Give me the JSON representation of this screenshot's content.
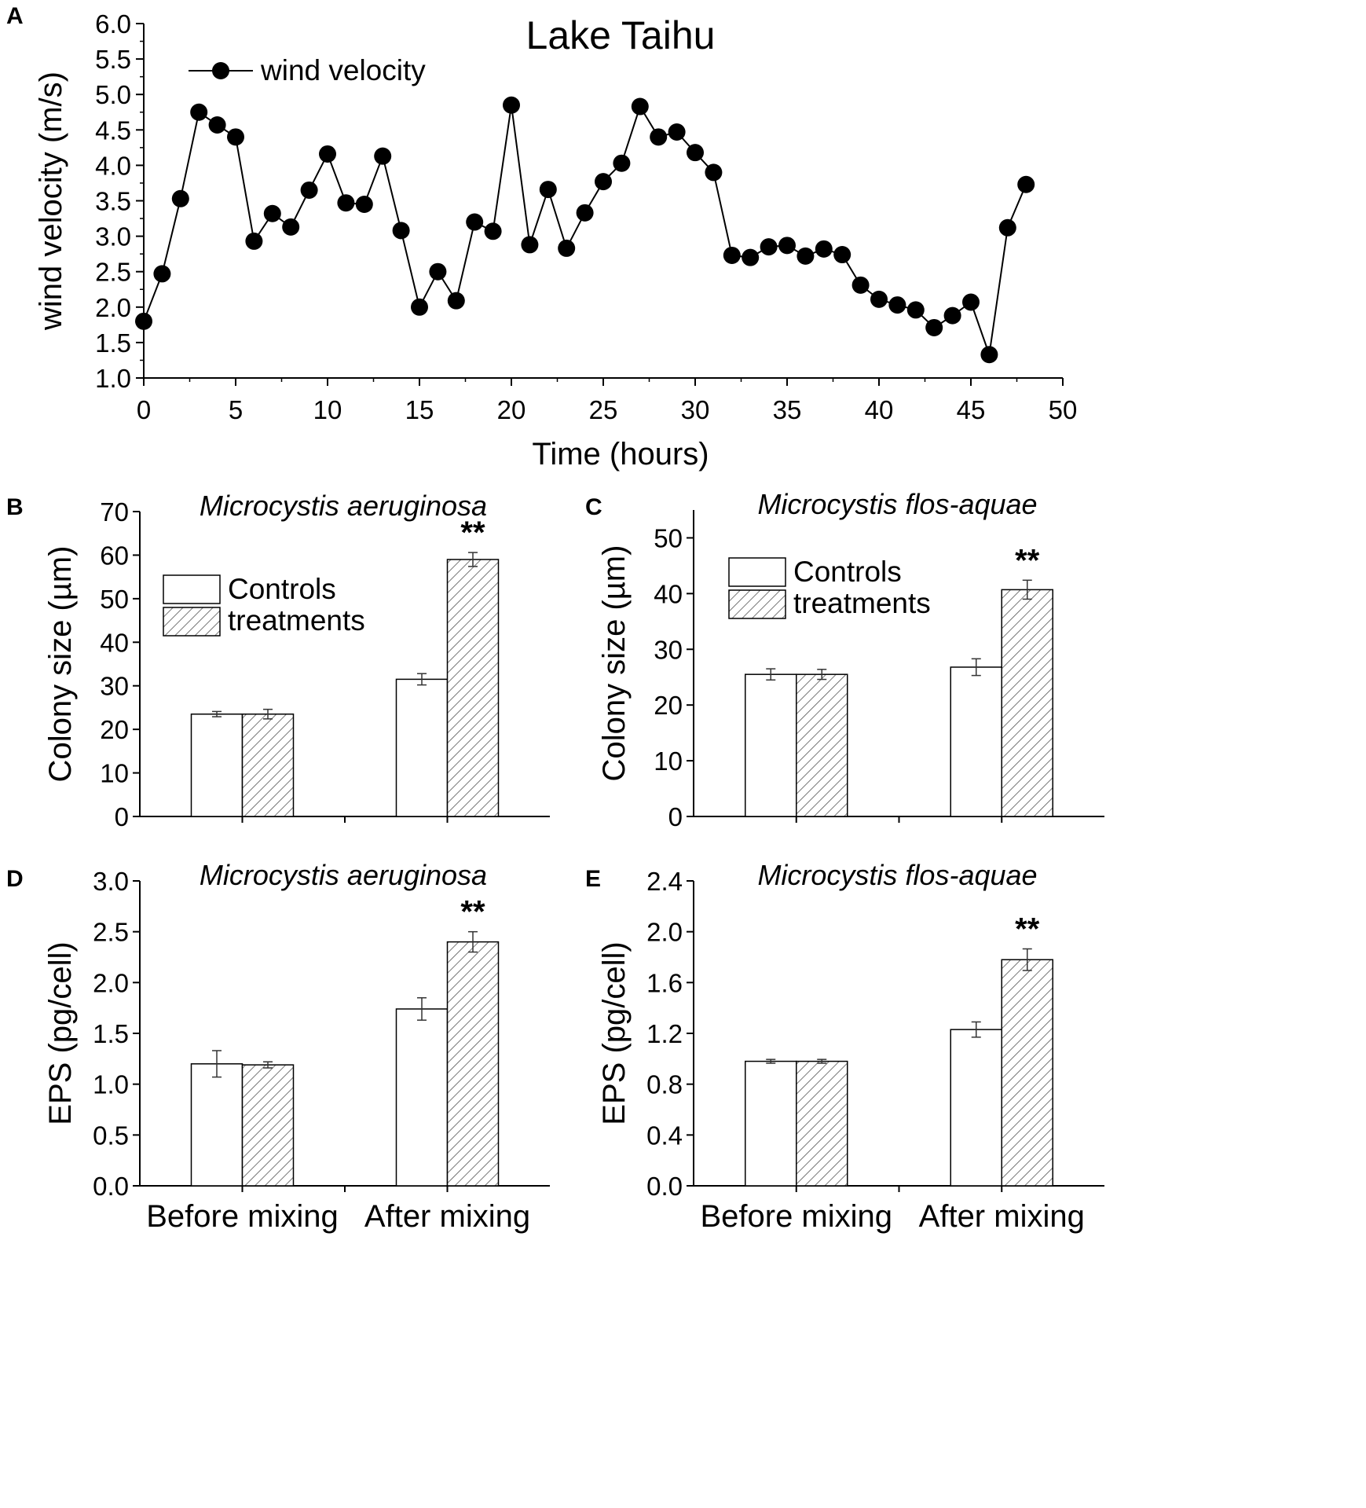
{
  "chart_data": [
    {
      "panel_label": "A",
      "type": "line",
      "title": "Lake Taihu",
      "xlabel": "Time (hours)",
      "ylabel": "wind velocity (m/s)",
      "xlim": [
        0,
        50
      ],
      "ylim": [
        1.0,
        6.0
      ],
      "xticks": [
        "0",
        "5",
        "10",
        "15",
        "20",
        "25",
        "30",
        "35",
        "40",
        "45",
        "50"
      ],
      "yticks": [
        "1.0",
        "1.5",
        "2.0",
        "2.5",
        "3.0",
        "3.5",
        "4.0",
        "4.5",
        "5.0",
        "5.5",
        "6.0"
      ],
      "legend": [
        "wind velocity"
      ],
      "series": [
        {
          "name": "wind velocity",
          "x": [
            0,
            1,
            2,
            3,
            4,
            5,
            6,
            7,
            8,
            9,
            10,
            11,
            12,
            13,
            14,
            15,
            16,
            17,
            18,
            19,
            20,
            21,
            22,
            23,
            24,
            25,
            26,
            27,
            28,
            29,
            30,
            31,
            32,
            33,
            34,
            35,
            36,
            37,
            38,
            39,
            40,
            41,
            42,
            43,
            44,
            45,
            46,
            47,
            48
          ],
          "y": [
            1.8,
            2.47,
            3.53,
            4.75,
            4.57,
            4.4,
            2.93,
            3.32,
            3.13,
            3.65,
            4.16,
            3.47,
            3.45,
            4.13,
            3.08,
            2.0,
            2.5,
            2.09,
            3.2,
            3.07,
            4.85,
            2.88,
            3.66,
            2.83,
            3.33,
            3.77,
            4.03,
            4.83,
            4.4,
            4.47,
            4.18,
            3.9,
            2.73,
            2.7,
            2.85,
            2.87,
            2.72,
            2.82,
            2.74,
            2.31,
            2.11,
            2.03,
            1.96,
            1.71,
            1.88,
            2.07,
            1.33,
            3.12,
            3.73
          ]
        }
      ]
    },
    {
      "panel_label": "B",
      "type": "bar",
      "title": "Microcystis aeruginosa",
      "xlabel": "",
      "ylabel": "Colony size (µm)",
      "ylim": [
        0,
        70
      ],
      "yticks": [
        "0",
        "10",
        "20",
        "30",
        "40",
        "50",
        "60",
        "70"
      ],
      "categories": [
        "Before mixing",
        "After mixing"
      ],
      "show_category_labels": false,
      "legend": [
        "Controls",
        "treatments"
      ],
      "series": [
        {
          "name": "Controls",
          "values": [
            23.5,
            31.5
          ],
          "errors": [
            0.6,
            1.3
          ]
        },
        {
          "name": "treatments",
          "values": [
            23.5,
            59.0
          ],
          "errors": [
            1.1,
            1.6
          ]
        }
      ],
      "annotations": [
        {
          "text": "**",
          "category": 1,
          "series": 1
        }
      ]
    },
    {
      "panel_label": "C",
      "type": "bar",
      "title": "Microcystis flos-aquae",
      "xlabel": "",
      "ylabel": "Colony size (µm)",
      "ylim": [
        0,
        55
      ],
      "yticks": [
        "0",
        "10",
        "20",
        "30",
        "40",
        "50"
      ],
      "categories": [
        "Before mixing",
        "After mixing"
      ],
      "show_category_labels": false,
      "legend": [
        "Controls",
        "treatments"
      ],
      "series": [
        {
          "name": "Controls",
          "values": [
            25.5,
            26.8
          ],
          "errors": [
            1.0,
            1.5
          ]
        },
        {
          "name": "treatments",
          "values": [
            25.5,
            40.7
          ],
          "errors": [
            0.9,
            1.7
          ]
        }
      ],
      "annotations": [
        {
          "text": "**",
          "category": 1,
          "series": 1
        }
      ]
    },
    {
      "panel_label": "D",
      "type": "bar",
      "title": "Microcystis aeruginosa",
      "xlabel": "",
      "ylabel": "EPS (pg/cell)",
      "ylim": [
        0,
        3.0
      ],
      "yticks": [
        "0.0",
        "0.5",
        "1.0",
        "1.5",
        "2.0",
        "2.5",
        "3.0"
      ],
      "categories": [
        "Before mixing",
        "After mixing"
      ],
      "show_category_labels": true,
      "series": [
        {
          "name": "Controls",
          "values": [
            1.2,
            1.74
          ],
          "errors": [
            0.13,
            0.11
          ]
        },
        {
          "name": "treatments",
          "values": [
            1.19,
            2.4
          ],
          "errors": [
            0.03,
            0.1
          ]
        }
      ],
      "annotations": [
        {
          "text": "**",
          "category": 1,
          "series": 1
        }
      ]
    },
    {
      "panel_label": "E",
      "type": "bar",
      "title": "Microcystis flos-aquae",
      "xlabel": "",
      "ylabel": "EPS (pg/cell)",
      "ylim": [
        0,
        2.4
      ],
      "yticks": [
        "0.0",
        "0.4",
        "0.8",
        "1.2",
        "1.6",
        "2.0",
        "2.4"
      ],
      "categories": [
        "Before mixing",
        "After mixing"
      ],
      "show_category_labels": true,
      "series": [
        {
          "name": "Controls",
          "values": [
            0.98,
            1.23
          ],
          "errors": [
            0.015,
            0.06
          ]
        },
        {
          "name": "treatments",
          "values": [
            0.98,
            1.78
          ],
          "errors": [
            0.015,
            0.085
          ]
        }
      ],
      "annotations": [
        {
          "text": "**",
          "category": 1,
          "series": 1
        }
      ]
    }
  ]
}
